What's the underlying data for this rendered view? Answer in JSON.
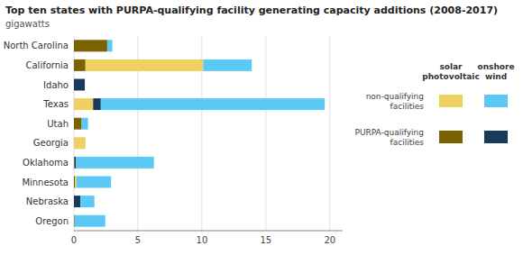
{
  "chart_data": {
    "type": "bar",
    "orientation": "horizontal",
    "stacked": true,
    "title": "Top ten states with PURPA-qualifying facility generating capacity additions (2008-2017)",
    "subtitle": "gigawatts",
    "categories": [
      "Oregon",
      "Nebraska",
      "Minnesota",
      "Oklahoma",
      "Georgia",
      "Utah",
      "Texas",
      "Idaho",
      "California",
      "North Carolina"
    ],
    "series": [
      {
        "color": "#7a6200",
        "values": [
          0.05,
          0.0,
          0.1,
          0.05,
          0.0,
          0.6,
          0.0,
          0.0,
          0.9,
          2.6
        ]
      },
      {
        "color": "#f0d060",
        "values": [
          0.0,
          0.0,
          0.1,
          0.0,
          0.9,
          0.0,
          1.5,
          0.0,
          9.2,
          0.0
        ]
      },
      {
        "color": "#1a3a5c",
        "values": [
          0.0,
          0.5,
          0.0,
          0.1,
          0.0,
          0.0,
          0.6,
          0.85,
          0.0,
          0.0
        ]
      },
      {
        "color": "#5bc8f5",
        "values": [
          2.4,
          1.1,
          2.7,
          6.1,
          0.0,
          0.5,
          17.5,
          0.0,
          3.8,
          0.4
        ]
      }
    ],
    "xlim": [
      0,
      21
    ],
    "xticks": [
      0,
      5,
      10,
      15,
      20
    ],
    "grid": true,
    "annotations": [
      "solar\nphotovoltaic",
      "onshore\nwind",
      "non-qualifying\nfacilities",
      "PURPA-qualifying\nfacilities"
    ]
  }
}
